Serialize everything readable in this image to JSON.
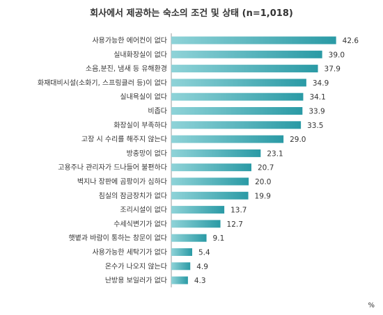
{
  "chart_data": {
    "type": "bar",
    "orientation": "horizontal",
    "title": "회사에서 제공하는 숙소의 조건 및 상태 (n=1,018)",
    "unit": "%",
    "xlim": [
      0,
      45
    ],
    "grid": false,
    "bar_color": "#2a9aa5",
    "bar_color_light": "#8fd3d8",
    "categories": [
      "사용가능한 에어컨이 없다",
      "실내화장실이 없다",
      "소음,분진, 냄새 등 유해환경",
      "화재대비시설(소화기, 스프링클러 등)이 없다",
      "실내욕실이 없다",
      "비좁다",
      "화장실이 부족하다",
      "고장 시 수리를 해주지 않는다",
      "방충망이 없다",
      "고용주나 관리자가 드나들어 불편하다",
      "벽지나 장판에 곰팡이가 심하다",
      "침실의 잠금장치가 없다",
      "조리시설이 없다",
      "수세식변기가 없다",
      "햇볕과 바람이 통하는 창문이 없다",
      "사용가능한 세탁기가 없다",
      "온수가 나오지 않는다",
      "난방용 보일러가 없다"
    ],
    "values": [
      42.6,
      39.0,
      37.9,
      34.9,
      34.1,
      33.9,
      33.5,
      29.0,
      23.1,
      20.7,
      20.0,
      19.9,
      13.7,
      12.7,
      9.1,
      5.4,
      4.9,
      4.3
    ],
    "value_labels": [
      "42.6",
      "39.0",
      "37.9",
      "34.9",
      "34.1",
      "33.9",
      "33.5",
      "29.0",
      "23.1",
      "20.7",
      "20.0",
      "19.9",
      "13.7",
      "12.7",
      "9.1",
      "5.4",
      "4.9",
      "4.3"
    ]
  }
}
